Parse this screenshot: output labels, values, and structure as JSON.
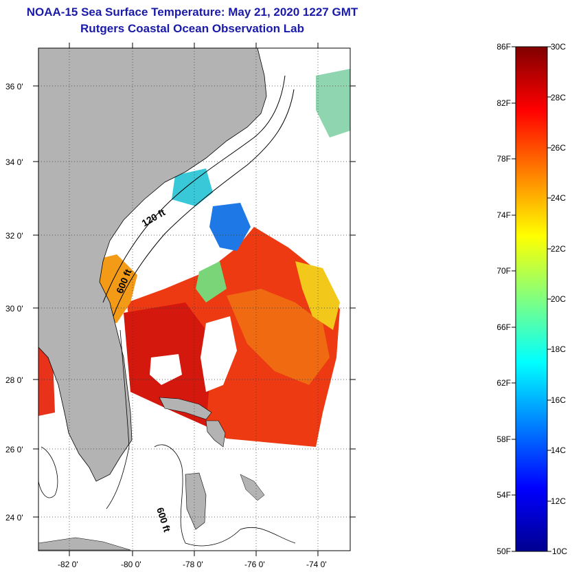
{
  "title": {
    "line1": "NOAA-15 Sea Surface Temperature:  May 21, 2020 1227 GMT",
    "line2": "Rutgers Coastal Ocean Observation Lab"
  },
  "map": {
    "lat_labels": [
      "36 0'",
      "34 0'",
      "32 0'",
      "30 0'",
      "28 0'",
      "26 0'",
      "24 0'"
    ],
    "lon_labels": [
      "-82 0'",
      "-80 0'",
      "-78 0'",
      "-76 0'",
      "-74 0'"
    ],
    "isobath_labels": [
      "120 ft",
      "600 ft",
      "600 ft"
    ],
    "colors": {
      "land": "#b3b3b3",
      "no_data": "#ffffff",
      "grid": "#333333"
    }
  },
  "colorbar": {
    "fahrenheit_labels": [
      "86F",
      "82F",
      "78F",
      "74F",
      "70F",
      "66F",
      "62F",
      "58F",
      "54F",
      "50F"
    ],
    "celsius_labels": [
      "30C",
      "28C",
      "26C",
      "24C",
      "22C",
      "20C",
      "18C",
      "16C",
      "14C",
      "12C",
      "10C"
    ],
    "colors": [
      "#00008f",
      "#0000ff",
      "#0080ff",
      "#00ffff",
      "#80ff80",
      "#ffff00",
      "#ff8000",
      "#ff0000",
      "#800000"
    ]
  }
}
